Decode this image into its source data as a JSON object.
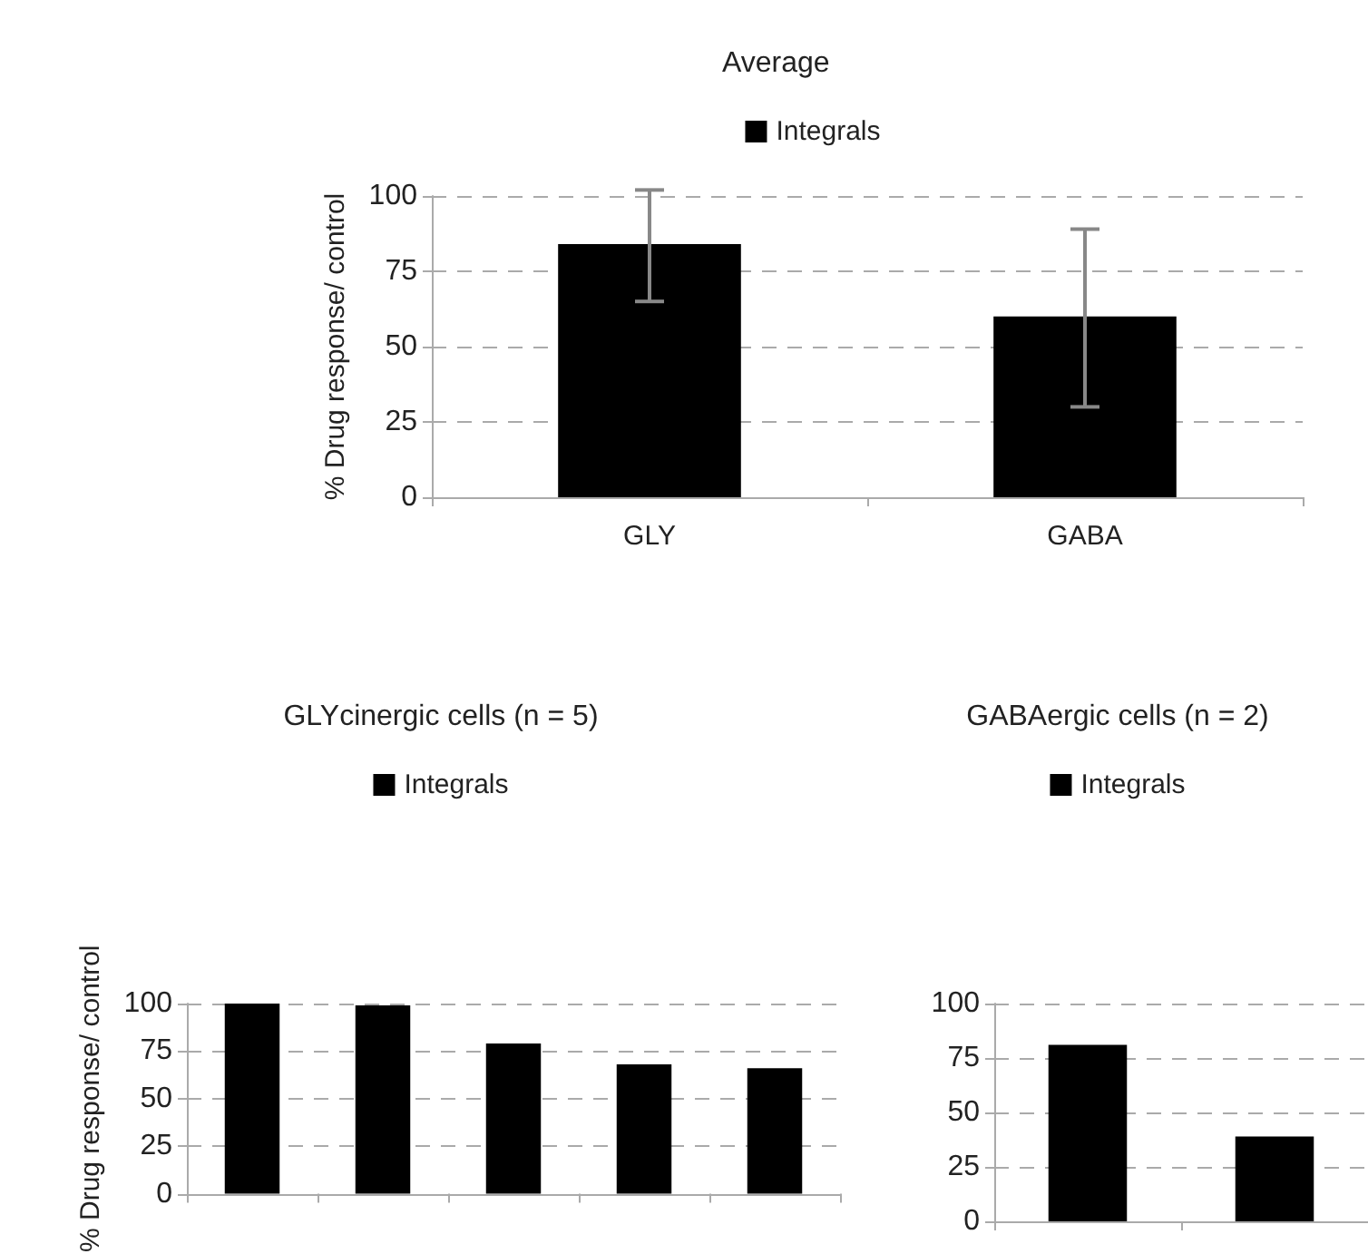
{
  "chart_data": [
    {
      "type": "bar",
      "title": "Average",
      "ylabel": "% Drug response/ control",
      "categories": [
        "GLY",
        "GABA"
      ],
      "series": [
        {
          "name": "Integrals",
          "color": "#000000",
          "values": [
            84,
            60
          ],
          "errors": [
            [
              65,
              102
            ],
            [
              30,
              89
            ]
          ]
        }
      ],
      "ylim": [
        0,
        100
      ],
      "yticks": [
        0,
        25,
        50,
        75,
        100
      ],
      "grid": "y",
      "legend": "top"
    },
    {
      "type": "bar",
      "title": "GLYcinergic cells (n = 5)",
      "ylabel": "% Drug response/ control",
      "categories": [
        null,
        null,
        null,
        null,
        null
      ],
      "series": [
        {
          "name": "Integrals",
          "color": "#000000",
          "values": [
            100,
            99,
            79,
            68,
            66
          ]
        }
      ],
      "ylim": [
        0,
        100
      ],
      "yticks": [
        0,
        25,
        50,
        75,
        100
      ],
      "grid": "y",
      "legend": "top"
    },
    {
      "type": "bar",
      "title": "GABAergic cells (n = 2)",
      "categories": [
        null,
        null
      ],
      "series": [
        {
          "name": "Integrals",
          "color": "#000000",
          "values": [
            81,
            39
          ]
        }
      ],
      "ylim": [
        0,
        100
      ],
      "yticks": [
        0,
        25,
        50,
        75,
        100
      ],
      "grid": "y",
      "legend": "top"
    }
  ]
}
